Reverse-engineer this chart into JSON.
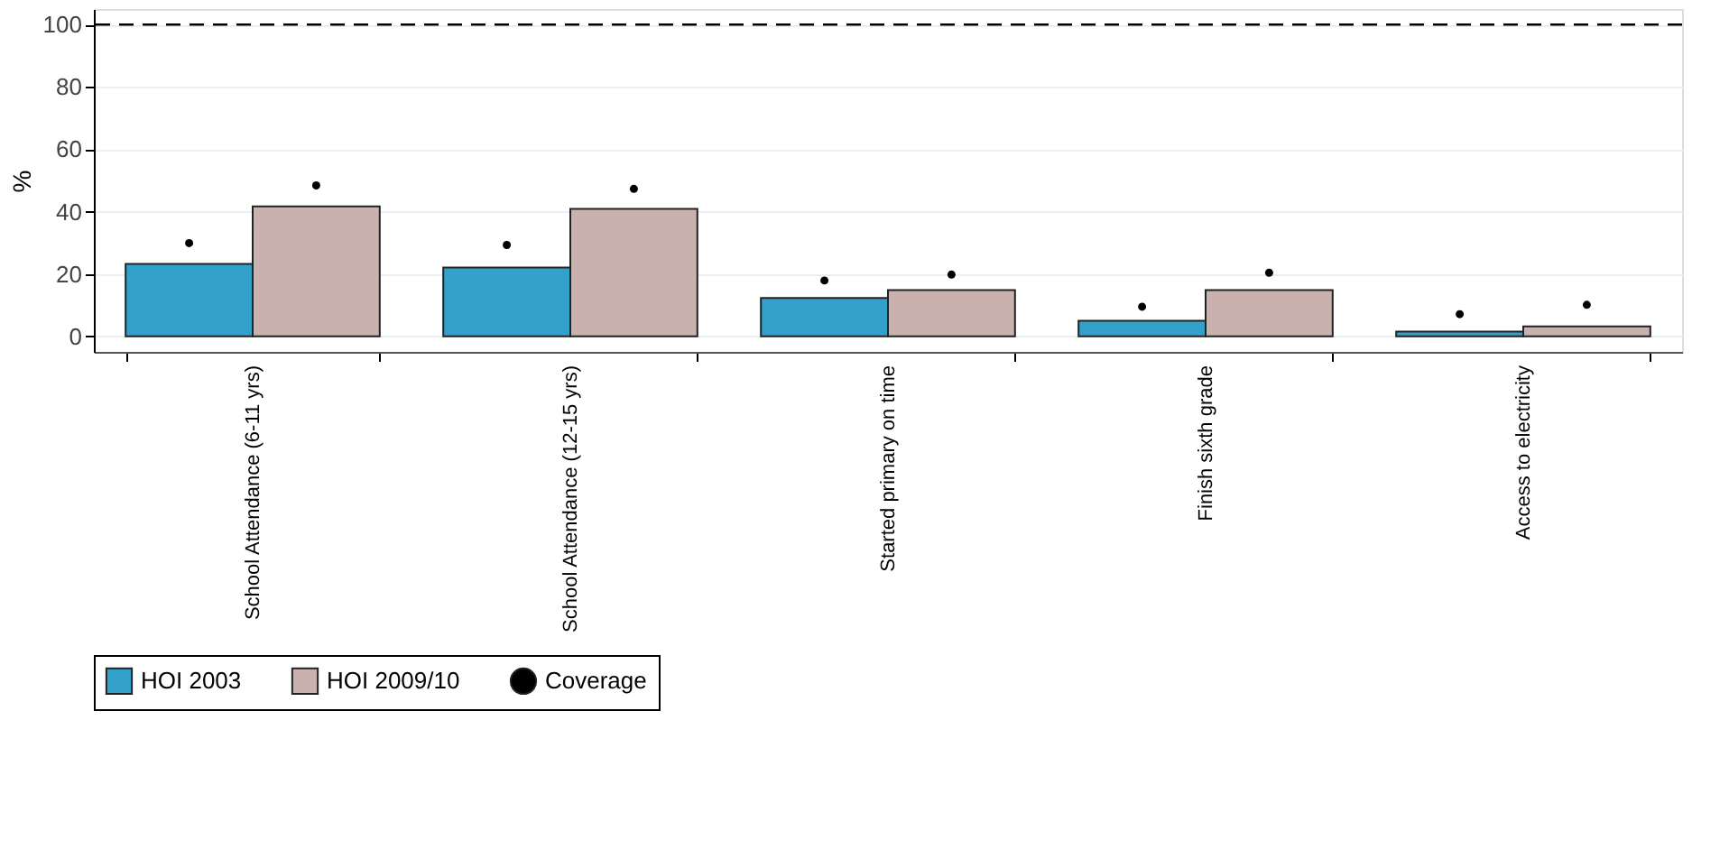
{
  "chart_data": {
    "type": "bar",
    "ylabel": "%",
    "categories": [
      "School Attendance (6-11 yrs)",
      "School Attendance (12-15 yrs)",
      "Started primary on time",
      "Finish sixth grade",
      "Access to electricity"
    ],
    "series": [
      {
        "name": "HOI 2003",
        "color": "#33a1c9",
        "values": [
          23.2,
          22.1,
          12.3,
          5.0,
          1.5
        ]
      },
      {
        "name": "HOI 2009/10",
        "color": "#c9b2ad",
        "values": [
          41.7,
          40.9,
          14.8,
          14.8,
          3.2
        ]
      },
      {
        "name": "Coverage",
        "type": "scatter",
        "color": "#000000",
        "x": [
          "School Attendance (6-11 yrs)",
          "School Attendance (6-11 yrs)",
          "School Attendance (12-15 yrs)",
          "School Attendance (12-15 yrs)",
          "Started primary on time",
          "Started primary on time",
          "Finish sixth grade",
          "Finish sixth grade",
          "Access to electricity",
          "Access to electricity"
        ],
        "values": [
          29.9,
          48.4,
          29.3,
          47.3,
          17.9,
          19.8,
          9.5,
          20.4,
          7.1,
          10.1
        ]
      }
    ],
    "ylim": [
      -5,
      105
    ],
    "yticks": [
      0,
      20,
      40,
      60,
      80,
      100
    ],
    "grid": "y",
    "legend": "bottom",
    "marker": "circle",
    "ref_lines": [
      {
        "axis": "y",
        "value": 100,
        "line_style": "dashed",
        "color": "#000000"
      }
    ]
  }
}
